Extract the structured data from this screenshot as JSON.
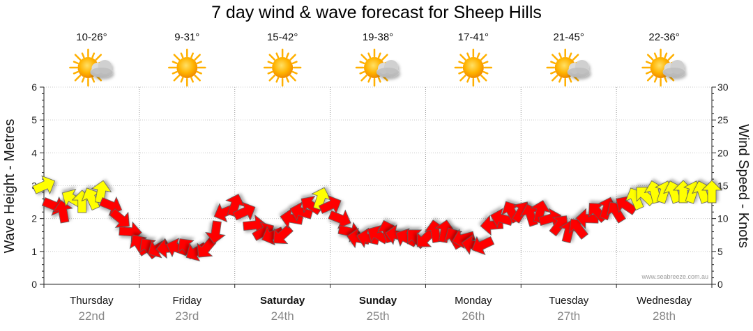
{
  "title": "7 day wind & wave forecast for Sheep Hills",
  "credit": "www.seabreeze.com.au",
  "days": [
    {
      "name": "Thursday",
      "date": "22nd",
      "temp": "10-26°",
      "weather": "partly-cloudy-icon",
      "bold": false
    },
    {
      "name": "Friday",
      "date": "23rd",
      "temp": "9-31°",
      "weather": "sunny-icon",
      "bold": false
    },
    {
      "name": "Saturday",
      "date": "24th",
      "temp": "15-42°",
      "weather": "sunny-icon",
      "bold": true
    },
    {
      "name": "Sunday",
      "date": "25th",
      "temp": "19-38°",
      "weather": "partly-cloudy-icon",
      "bold": true
    },
    {
      "name": "Monday",
      "date": "26th",
      "temp": "17-41°",
      "weather": "sunny-icon",
      "bold": false
    },
    {
      "name": "Tuesday",
      "date": "27th",
      "temp": "21-45°",
      "weather": "partly-cloudy-icon",
      "bold": false
    },
    {
      "name": "Wednesday",
      "date": "28th",
      "temp": "22-36°",
      "weather": "partly-cloudy-icon",
      "bold": false
    }
  ],
  "colors": {
    "strong_wind": "#ff0000",
    "light_wind": "#ffff00",
    "arrow_outline": "#555555",
    "grid": "#999999"
  },
  "chart_data": {
    "type": "line",
    "title": "7 day wind & wave forecast for Sheep Hills",
    "x_unit": "days from start of Thursday 22nd",
    "xlim": [
      0,
      7
    ],
    "left_axis": {
      "label": "Wave Height - Metres",
      "ylim": [
        0,
        6
      ],
      "ticks": [
        0,
        1,
        2,
        3,
        4,
        5,
        6
      ]
    },
    "right_axis": {
      "label": "Wind Speed - Knots",
      "ylim": [
        0,
        30
      ],
      "ticks": [
        0,
        5,
        10,
        15,
        20,
        25,
        30
      ]
    },
    "wind_series": {
      "name": "Wind Speed (knots)",
      "x": [
        0.0,
        0.1,
        0.2,
        0.3,
        0.4,
        0.5,
        0.6,
        0.7,
        0.8,
        0.9,
        1.0,
        1.1,
        1.2,
        1.3,
        1.4,
        1.5,
        1.6,
        1.7,
        1.8,
        1.9,
        2.0,
        2.1,
        2.2,
        2.3,
        2.4,
        2.5,
        2.6,
        2.7,
        2.8,
        2.9,
        3.0,
        3.1,
        3.2,
        3.3,
        3.4,
        3.5,
        3.6,
        3.7,
        3.8,
        3.9,
        4.0,
        4.1,
        4.2,
        4.3,
        4.4,
        4.5,
        4.6,
        4.7,
        4.8,
        4.9,
        5.0,
        5.1,
        5.2,
        5.3,
        5.4,
        5.5,
        5.6,
        5.7,
        5.8,
        5.9,
        6.0,
        6.1,
        6.2,
        6.3,
        6.4,
        6.5,
        6.6,
        6.7,
        6.8,
        6.9,
        7.0
      ],
      "values": [
        15,
        12,
        11,
        13,
        12.5,
        13,
        14,
        12,
        10,
        8,
        6,
        5.5,
        5.5,
        5.5,
        5.5,
        5.5,
        5,
        5.5,
        8,
        11,
        12,
        11,
        9,
        8,
        7.5,
        7.5,
        10,
        11,
        12,
        13,
        12,
        10,
        8,
        7,
        7,
        7.5,
        8,
        7.5,
        7,
        7,
        7,
        8,
        8,
        7,
        7,
        6,
        6,
        9,
        10,
        11,
        11,
        10.5,
        11,
        10,
        9,
        8,
        8.5,
        10,
        11,
        11.5,
        11,
        12,
        13,
        13.5,
        14,
        14,
        14,
        14,
        14,
        14,
        14
      ],
      "light_wind_threshold": 12.5
    }
  },
  "axis_tick_labels_left": [
    "0",
    "1",
    "2",
    "3",
    "4",
    "5",
    "6"
  ],
  "axis_tick_labels_right": [
    "0",
    "5",
    "10",
    "15",
    "20",
    "25",
    "30"
  ]
}
